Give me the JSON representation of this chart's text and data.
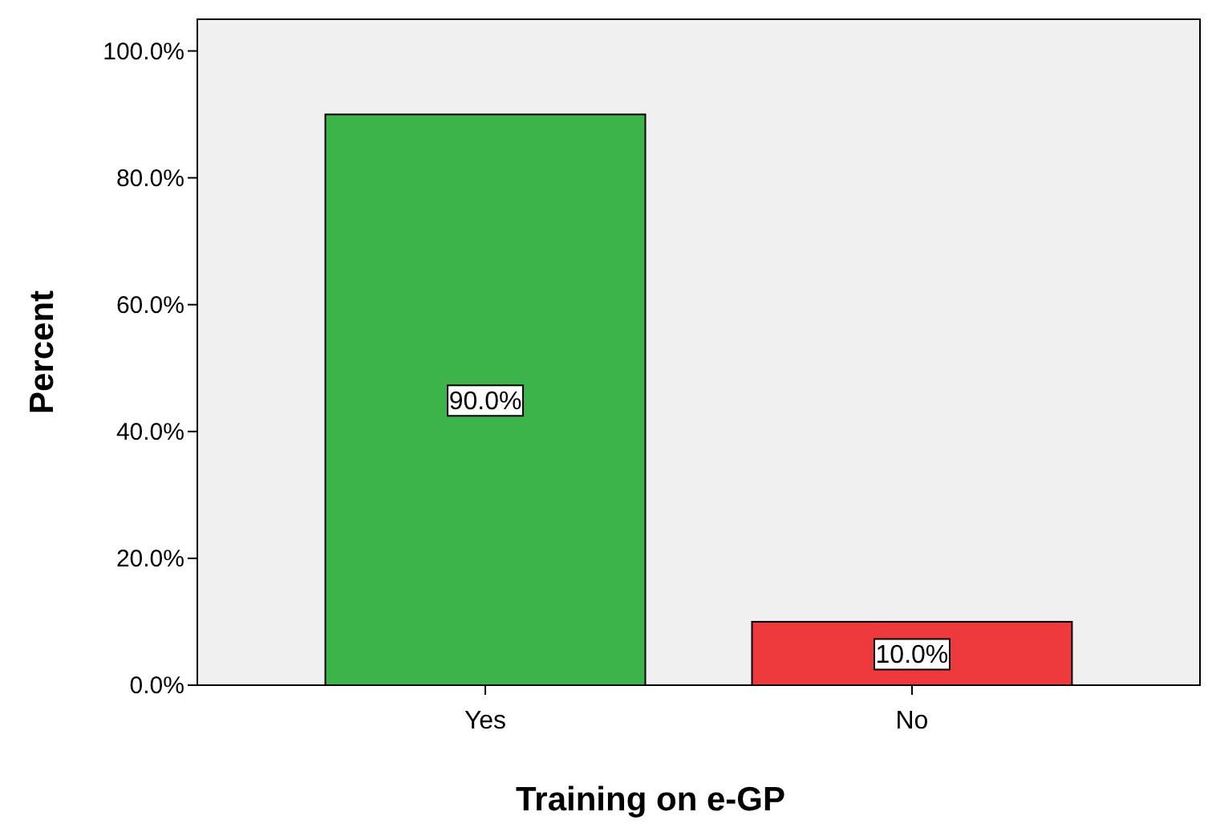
{
  "chart_data": {
    "type": "bar",
    "xlabel": "Training on e-GP",
    "ylabel": "Percent",
    "categories": [
      "Yes",
      "No"
    ],
    "values": [
      90,
      10
    ],
    "colors": [
      "#3cb44a",
      "#ee3a3c"
    ],
    "value_labels": [
      "90.0%",
      "10.0%"
    ],
    "ylim": [
      0,
      105
    ],
    "yticks": [
      {
        "value": 0,
        "label": "0.0%"
      },
      {
        "value": 20,
        "label": "20.0%"
      },
      {
        "value": 40,
        "label": "40.0%"
      },
      {
        "value": 60,
        "label": "60.0%"
      },
      {
        "value": 80,
        "label": "80.0%"
      },
      {
        "value": 100,
        "label": "100.0%"
      }
    ],
    "grid": false
  }
}
